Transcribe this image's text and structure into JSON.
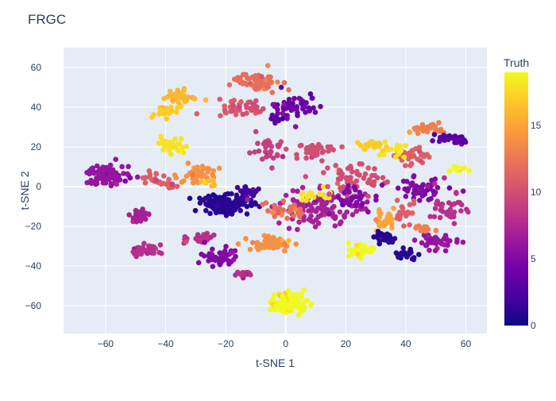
{
  "chart_data": {
    "type": "scatter",
    "title": "FRGC",
    "xlabel": "t-SNE 1",
    "ylabel": "t-SNE 2",
    "xlim": [
      -74,
      67
    ],
    "ylim": [
      -74,
      70
    ],
    "x_ticks": [
      -60,
      -40,
      -20,
      0,
      20,
      40,
      60
    ],
    "y_ticks": [
      -60,
      -40,
      -20,
      0,
      20,
      40,
      60
    ],
    "grid": true,
    "colorbar": {
      "title": "Truth",
      "range": [
        0,
        19
      ],
      "ticks": [
        0,
        5,
        10,
        15
      ],
      "colorscale": [
        "#0d0887",
        "#46039f",
        "#7201a8",
        "#9c179e",
        "#bd3786",
        "#d8576b",
        "#ed7953",
        "#fb9f3a",
        "#fdca26",
        "#f0f921"
      ]
    },
    "clusters": [
      {
        "cx": -60,
        "cy": 6,
        "sx": 3.4,
        "sy": 2.6,
        "n": 90,
        "value": 6
      },
      {
        "cx": -48,
        "cy": -15,
        "sx": 2.0,
        "sy": 1.5,
        "n": 30,
        "value": 7
      },
      {
        "cx": -47,
        "cy": -32,
        "sx": 2.8,
        "sy": 1.6,
        "n": 35,
        "value": 8
      },
      {
        "cx": -44,
        "cy": 3,
        "sx": 2.5,
        "sy": 2.0,
        "n": 22,
        "value": 11
      },
      {
        "cx": -39,
        "cy": 0,
        "sx": 1.4,
        "sy": 1.0,
        "n": 10,
        "value": 11
      },
      {
        "cx": -35,
        "cy": 45,
        "sx": 2.8,
        "sy": 1.8,
        "n": 35,
        "value": 16
      },
      {
        "cx": -40,
        "cy": 38,
        "sx": 2.0,
        "sy": 1.5,
        "n": 25,
        "value": 17
      },
      {
        "cx": -38,
        "cy": 20,
        "sx": 2.8,
        "sy": 1.6,
        "n": 30,
        "value": 18
      },
      {
        "cx": -29,
        "cy": 7,
        "sx": 3.0,
        "sy": 2.0,
        "n": 45,
        "value": 14
      },
      {
        "cx": -25,
        "cy": 2,
        "sx": 1.2,
        "sy": 1.2,
        "n": 8,
        "value": 16
      },
      {
        "cx": -20,
        "cy": -9,
        "sx": 3.8,
        "sy": 2.6,
        "n": 140,
        "value": 1
      },
      {
        "cx": -13,
        "cy": -3,
        "sx": 2.0,
        "sy": 1.5,
        "n": 25,
        "value": 2
      },
      {
        "cx": -29,
        "cy": -26,
        "sx": 2.2,
        "sy": 1.8,
        "n": 30,
        "value": 8
      },
      {
        "cx": -23,
        "cy": -35,
        "sx": 3.0,
        "sy": 2.2,
        "n": 50,
        "value": 5
      },
      {
        "cx": -14,
        "cy": -44,
        "sx": 1.5,
        "sy": 0.8,
        "n": 15,
        "value": 8
      },
      {
        "cx": -19,
        "cy": 40,
        "sx": 3.2,
        "sy": 2.2,
        "n": 25,
        "value": 11
      },
      {
        "cx": -11,
        "cy": 39,
        "sx": 2.5,
        "sy": 2.0,
        "n": 22,
        "value": 10
      },
      {
        "cx": -10,
        "cy": 53,
        "sx": 4.0,
        "sy": 3.2,
        "n": 60,
        "value": 12
      },
      {
        "cx": 3,
        "cy": 41,
        "sx": 4.0,
        "sy": 3.2,
        "n": 55,
        "value": 4
      },
      {
        "cx": -2,
        "cy": 34,
        "sx": 1.5,
        "sy": 0.9,
        "n": 10,
        "value": 3
      },
      {
        "cx": -5,
        "cy": -29,
        "sx": 4.0,
        "sy": 1.8,
        "n": 80,
        "value": 14
      },
      {
        "cx": 1,
        "cy": -59,
        "sx": 3.2,
        "sy": 2.6,
        "n": 100,
        "value": 19
      },
      {
        "cx": -5,
        "cy": 17,
        "sx": 2.5,
        "sy": 3.0,
        "n": 30,
        "value": 9
      },
      {
        "cx": 10,
        "cy": 18,
        "sx": 3.5,
        "sy": 2.0,
        "n": 40,
        "value": 10
      },
      {
        "cx": 11,
        "cy": -10,
        "sx": 8.0,
        "sy": 4.5,
        "n": 120,
        "value": 7
      },
      {
        "cx": -1,
        "cy": -12,
        "sx": 3.0,
        "sy": 2.0,
        "n": 25,
        "value": 12
      },
      {
        "cx": 9,
        "cy": -5,
        "sx": 2.5,
        "sy": 1.5,
        "n": 20,
        "value": 18
      },
      {
        "cx": 22,
        "cy": 4,
        "sx": 5.0,
        "sy": 4.0,
        "n": 60,
        "value": 10
      },
      {
        "cx": 23,
        "cy": -5,
        "sx": 4.0,
        "sy": 2.5,
        "n": 30,
        "value": 5
      },
      {
        "cx": 30,
        "cy": 21,
        "sx": 2.5,
        "sy": 1.2,
        "n": 20,
        "value": 17
      },
      {
        "cx": 33,
        "cy": -17,
        "sx": 2.0,
        "sy": 2.5,
        "n": 30,
        "value": 15
      },
      {
        "cx": 33,
        "cy": -26,
        "sx": 2.0,
        "sy": 1.4,
        "n": 25,
        "value": 1
      },
      {
        "cx": 25,
        "cy": -32,
        "sx": 2.5,
        "sy": 2.0,
        "n": 30,
        "value": 19
      },
      {
        "cx": 40,
        "cy": -34,
        "sx": 1.8,
        "sy": 1.2,
        "n": 25,
        "value": 1
      },
      {
        "cx": 42,
        "cy": 15,
        "sx": 3.0,
        "sy": 2.5,
        "n": 35,
        "value": 11
      },
      {
        "cx": 47,
        "cy": 29,
        "sx": 3.2,
        "sy": 1.4,
        "n": 30,
        "value": 13
      },
      {
        "cx": 56,
        "cy": 24,
        "sx": 3.0,
        "sy": 1.4,
        "n": 30,
        "value": 3
      },
      {
        "cx": 57,
        "cy": 9,
        "sx": 1.5,
        "sy": 0.9,
        "n": 12,
        "value": 19
      },
      {
        "cx": 46,
        "cy": -2,
        "sx": 5.0,
        "sy": 3.0,
        "n": 50,
        "value": 5
      },
      {
        "cx": 50,
        "cy": -28,
        "sx": 3.5,
        "sy": 2.2,
        "n": 40,
        "value": 6
      },
      {
        "cx": 55,
        "cy": -10,
        "sx": 3.0,
        "sy": 5.0,
        "n": 35,
        "value": 8
      },
      {
        "cx": 40,
        "cy": -13,
        "sx": 2.0,
        "sy": 2.5,
        "n": 20,
        "value": 11
      },
      {
        "cx": 47,
        "cy": -21,
        "sx": 2.0,
        "sy": 1.0,
        "n": 15,
        "value": 13
      },
      {
        "cx": 37,
        "cy": 18,
        "sx": 2.5,
        "sy": 1.5,
        "n": 15,
        "value": 18
      }
    ]
  }
}
